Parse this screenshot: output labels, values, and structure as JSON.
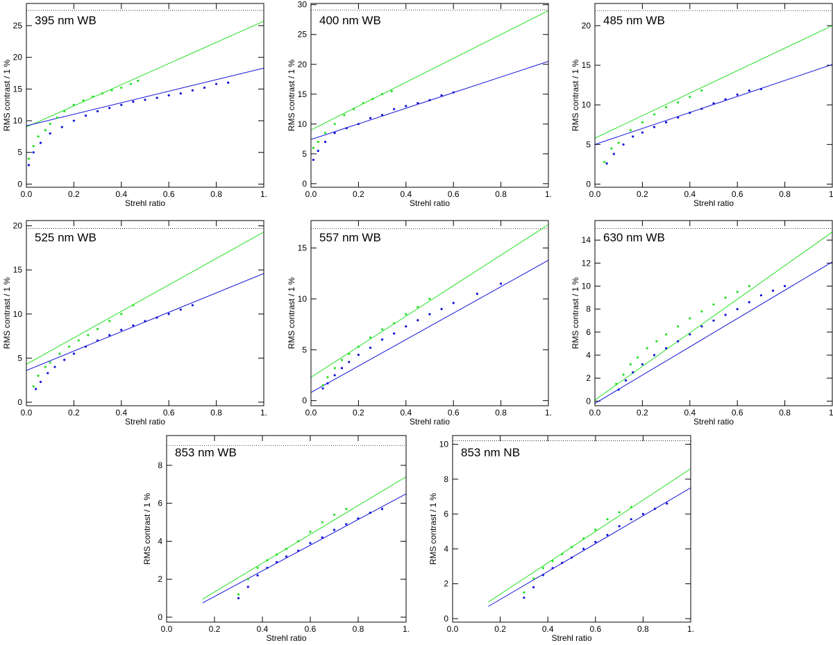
{
  "chart_data": [
    {
      "type": "scatter",
      "title": "395 nm WB",
      "xlabel": "Strehl ratio",
      "ylabel": "RMS contrast / 1 %",
      "xlim": [
        0,
        1
      ],
      "xticks": [
        {
          "value": 0,
          "label": "0.0"
        },
        0.2,
        0.4,
        0.6,
        0.8,
        {
          "value": 1,
          "label": "1."
        }
      ],
      "ylim": [
        -0.5,
        28.5
      ],
      "yticks": [
        0,
        5,
        10,
        15,
        20,
        25
      ],
      "reference_line": 27.4,
      "series": [
        {
          "color": "#22e022",
          "x": [
            0.01,
            0.03,
            0.05,
            0.08,
            0.1,
            0.13,
            0.16,
            0.2,
            0.24,
            0.28,
            0.32,
            0.36,
            0.4,
            0.44,
            0.47
          ],
          "values": [
            4,
            6,
            7.5,
            8.5,
            9.5,
            10.5,
            11.5,
            12.5,
            13.2,
            13.8,
            14.3,
            14.8,
            15.2,
            15.8,
            16.3
          ]
        },
        {
          "color": "#1010d8",
          "x": [
            0.01,
            0.03,
            0.06,
            0.1,
            0.15,
            0.2,
            0.25,
            0.3,
            0.35,
            0.4,
            0.45,
            0.5,
            0.55,
            0.6,
            0.65,
            0.7,
            0.75,
            0.8,
            0.85
          ],
          "values": [
            3,
            5,
            6.5,
            8,
            9,
            10,
            10.8,
            11.5,
            12,
            12.5,
            13,
            13.3,
            13.6,
            14,
            14.3,
            14.8,
            15.2,
            15.8,
            16
          ]
        }
      ],
      "fits": [
        {
          "color": "#22e022",
          "x": [
            0,
            1
          ],
          "values": [
            9.0,
            25.7
          ]
        },
        {
          "color": "#1010d8",
          "x": [
            0,
            1
          ],
          "values": [
            9.2,
            18.3
          ]
        }
      ]
    },
    {
      "type": "scatter",
      "title": "400 nm WB",
      "xlabel": "Strehl ratio",
      "ylabel": "RMS contrast / 1 %",
      "xlim": [
        0,
        1
      ],
      "xticks": [
        {
          "value": 0,
          "label": "0.0"
        },
        0.2,
        0.4,
        0.6,
        0.8,
        {
          "value": 1,
          "label": "1."
        }
      ],
      "ylim": [
        -0.6,
        30.2
      ],
      "yticks": [
        0,
        5,
        10,
        15,
        20,
        25,
        30
      ],
      "reference_line": 29.1,
      "series": [
        {
          "color": "#22e022",
          "x": [
            0.01,
            0.03,
            0.06,
            0.1,
            0.14,
            0.18,
            0.22,
            0.26,
            0.3,
            0.34
          ],
          "values": [
            6,
            7,
            8.5,
            10,
            11.5,
            12.5,
            13.5,
            14.2,
            15,
            15.5
          ]
        },
        {
          "color": "#1010d8",
          "x": [
            0.01,
            0.03,
            0.06,
            0.1,
            0.15,
            0.2,
            0.25,
            0.3,
            0.35,
            0.4,
            0.45,
            0.5,
            0.55,
            0.6
          ],
          "values": [
            4,
            5.5,
            7,
            8.5,
            9.3,
            10,
            11,
            11.5,
            12.5,
            13,
            13.5,
            14,
            14.8,
            15.3
          ]
        }
      ],
      "fits": [
        {
          "color": "#22e022",
          "x": [
            0,
            1
          ],
          "values": [
            9,
            29
          ]
        },
        {
          "color": "#1010d8",
          "x": [
            0,
            1
          ],
          "values": [
            7.4,
            20.5
          ]
        }
      ]
    },
    {
      "type": "scatter",
      "title": "485 nm WB",
      "xlabel": "Strehl ratio",
      "ylabel": "RMS contrast / 1 %",
      "xlim": [
        0,
        1
      ],
      "xticks": [
        {
          "value": 0,
          "label": "0.0"
        },
        0.2,
        0.4,
        0.6,
        0.8,
        {
          "value": 1,
          "label": "1."
        }
      ],
      "ylim": [
        -0.4,
        22.8
      ],
      "yticks": [
        0,
        5,
        10,
        15,
        20
      ],
      "reference_line": 21.9,
      "series": [
        {
          "color": "#22e022",
          "x": [
            0.04,
            0.07,
            0.1,
            0.15,
            0.2,
            0.25,
            0.3,
            0.35,
            0.4,
            0.45
          ],
          "values": [
            2.8,
            4.5,
            5.2,
            6.8,
            7.8,
            8.8,
            9.7,
            10.3,
            11,
            11.8
          ]
        },
        {
          "color": "#1010d8",
          "x": [
            0.05,
            0.08,
            0.12,
            0.16,
            0.2,
            0.25,
            0.3,
            0.35,
            0.4,
            0.45,
            0.5,
            0.55,
            0.6,
            0.65,
            0.7
          ],
          "values": [
            2.6,
            3.8,
            5,
            6,
            6.5,
            7.2,
            7.8,
            8.4,
            9,
            9.5,
            10.2,
            10.7,
            11.3,
            11.8,
            12
          ]
        }
      ],
      "fits": [
        {
          "color": "#22e022",
          "x": [
            0,
            1
          ],
          "values": [
            5.8,
            20
          ]
        },
        {
          "color": "#1010d8",
          "x": [
            0,
            1
          ],
          "values": [
            5,
            15.1
          ]
        }
      ]
    },
    {
      "type": "scatter",
      "title": "525 nm WB",
      "xlabel": "Strehl ratio",
      "ylabel": "RMS contrast / 1 %",
      "xlim": [
        0,
        1
      ],
      "xticks": [
        {
          "value": 0,
          "label": "0.0"
        },
        0.2,
        0.4,
        0.6,
        0.8,
        {
          "value": 1,
          "label": "1."
        }
      ],
      "ylim": [
        -0.4,
        20.6
      ],
      "yticks": [
        0,
        5,
        10,
        15,
        20
      ],
      "reference_line": 19.7,
      "series": [
        {
          "color": "#22e022",
          "x": [
            0.03,
            0.05,
            0.08,
            0.1,
            0.14,
            0.18,
            0.22,
            0.26,
            0.3,
            0.35,
            0.4,
            0.45
          ],
          "values": [
            1.8,
            3,
            4,
            4.5,
            5.5,
            6.3,
            7,
            7.6,
            8.3,
            9.2,
            10,
            11
          ]
        },
        {
          "color": "#1010d8",
          "x": [
            0.04,
            0.06,
            0.09,
            0.12,
            0.16,
            0.2,
            0.25,
            0.3,
            0.35,
            0.4,
            0.45,
            0.5,
            0.55,
            0.6,
            0.65,
            0.7
          ],
          "values": [
            1.5,
            2.3,
            3.3,
            4,
            4.8,
            5.5,
            6.3,
            7,
            7.6,
            8.2,
            8.7,
            9.2,
            9.6,
            10,
            10.5,
            11
          ]
        }
      ],
      "fits": [
        {
          "color": "#22e022",
          "x": [
            0,
            1
          ],
          "values": [
            4.3,
            19.3
          ]
        },
        {
          "color": "#1010d8",
          "x": [
            0,
            1
          ],
          "values": [
            3.6,
            14.6
          ]
        }
      ]
    },
    {
      "type": "scatter",
      "title": "557 nm WB",
      "xlabel": "Strehl ratio",
      "ylabel": "RMS contrast / 1 %",
      "xlim": [
        0,
        1
      ],
      "xticks": [
        {
          "value": 0,
          "label": "0.0"
        },
        0.2,
        0.4,
        0.6,
        0.8,
        {
          "value": 1,
          "label": "1."
        }
      ],
      "ylim": [
        -0.5,
        17.7
      ],
      "yticks": [
        0,
        5,
        10,
        15
      ],
      "reference_line": 16.9,
      "series": [
        {
          "color": "#22e022",
          "x": [
            0.05,
            0.07,
            0.1,
            0.13,
            0.16,
            0.2,
            0.25,
            0.3,
            0.35,
            0.4,
            0.45,
            0.5
          ],
          "values": [
            1.5,
            2.3,
            3.2,
            4,
            4.6,
            5.3,
            6.2,
            7,
            7.6,
            8.5,
            9.2,
            10
          ]
        },
        {
          "color": "#1010d8",
          "x": [
            0.05,
            0.07,
            0.1,
            0.13,
            0.16,
            0.2,
            0.25,
            0.3,
            0.35,
            0.4,
            0.45,
            0.5,
            0.55,
            0.6,
            0.7,
            0.8
          ],
          "values": [
            1.2,
            1.7,
            2.5,
            3.2,
            3.8,
            4.5,
            5.2,
            6,
            6.6,
            7.3,
            7.9,
            8.5,
            9,
            9.6,
            10.5,
            11.5
          ]
        }
      ],
      "fits": [
        {
          "color": "#22e022",
          "x": [
            0,
            1
          ],
          "values": [
            2.3,
            17.3
          ]
        },
        {
          "color": "#1010d8",
          "x": [
            0,
            1
          ],
          "values": [
            0.8,
            13.8
          ]
        }
      ]
    },
    {
      "type": "scatter",
      "title": "630 nm WB",
      "xlabel": "Strehl ratio",
      "ylabel": "RMS contrast / 1 %",
      "xlim": [
        0,
        1
      ],
      "xticks": [
        {
          "value": 0,
          "label": "0.0"
        },
        0.2,
        0.4,
        0.6,
        0.8,
        {
          "value": 1,
          "label": "1."
        }
      ],
      "ylim": [
        -0.4,
        15.7
      ],
      "yticks": [
        0,
        2,
        4,
        6,
        8,
        10,
        12,
        14
      ],
      "reference_line": 15.0,
      "series": [
        {
          "color": "#22e022",
          "x": [
            0.09,
            0.12,
            0.15,
            0.18,
            0.22,
            0.26,
            0.3,
            0.35,
            0.4,
            0.45,
            0.5,
            0.55,
            0.6,
            0.65
          ],
          "values": [
            1.5,
            2.3,
            3.2,
            3.8,
            4.6,
            5.2,
            5.8,
            6.5,
            7.2,
            7.8,
            8.4,
            9,
            9.5,
            10
          ]
        },
        {
          "color": "#1010d8",
          "x": [
            0.1,
            0.13,
            0.16,
            0.2,
            0.25,
            0.3,
            0.35,
            0.4,
            0.45,
            0.5,
            0.55,
            0.6,
            0.65,
            0.7,
            0.75,
            0.8
          ],
          "values": [
            1,
            1.8,
            2.5,
            3.2,
            4,
            4.6,
            5.2,
            5.8,
            6.5,
            7,
            7.5,
            8,
            8.6,
            9.2,
            9.6,
            10
          ]
        }
      ],
      "fits": [
        {
          "color": "#22e022",
          "x": [
            0,
            1
          ],
          "values": [
            0.1,
            14.7
          ]
        },
        {
          "color": "#1010d8",
          "x": [
            0,
            1
          ],
          "values": [
            -0.2,
            12.1
          ]
        }
      ]
    },
    {
      "type": "scatter",
      "title": "853 nm WB",
      "xlabel": "Strehl ratio",
      "ylabel": "RMS contrast / 1 %",
      "xlim": [
        0,
        1
      ],
      "xticks": [
        {
          "value": 0,
          "label": "0.0"
        },
        0.2,
        0.4,
        0.6,
        0.8,
        {
          "value": 1,
          "label": "1."
        }
      ],
      "ylim": [
        -0.26,
        9.57
      ],
      "yticks": [
        0,
        2,
        4,
        6,
        8
      ],
      "reference_line": 9.05,
      "series": [
        {
          "color": "#22e022",
          "x": [
            0.3,
            0.34,
            0.38,
            0.42,
            0.46,
            0.5,
            0.55,
            0.6,
            0.65,
            0.7,
            0.75
          ],
          "values": [
            1.2,
            2,
            2.6,
            3,
            3.3,
            3.6,
            4,
            4.5,
            5,
            5.4,
            5.7
          ]
        },
        {
          "color": "#1010d8",
          "x": [
            0.3,
            0.34,
            0.38,
            0.42,
            0.46,
            0.5,
            0.55,
            0.6,
            0.65,
            0.7,
            0.75,
            0.8,
            0.85,
            0.9
          ],
          "values": [
            1,
            1.6,
            2.2,
            2.6,
            2.9,
            3.2,
            3.5,
            3.9,
            4.2,
            4.6,
            4.9,
            5.2,
            5.5,
            5.7
          ]
        }
      ],
      "fits": [
        {
          "color": "#22e022",
          "x": [
            0.15,
            1
          ],
          "values": [
            0.95,
            7.4
          ]
        },
        {
          "color": "#1010d8",
          "x": [
            0.15,
            1
          ],
          "values": [
            0.75,
            6.5
          ]
        }
      ]
    },
    {
      "type": "scatter",
      "title": "853 nm NB",
      "xlabel": "Strehl ratio",
      "ylabel": "RMS contrast / 1 %",
      "xlim": [
        0,
        1
      ],
      "xticks": [
        {
          "value": 0,
          "label": "0.0"
        },
        0.2,
        0.4,
        0.6,
        0.8,
        {
          "value": 1,
          "label": "1."
        }
      ],
      "ylim": [
        -0.2,
        10.5
      ],
      "yticks": [
        0,
        2,
        4,
        6,
        8,
        10
      ],
      "reference_line": 10.2,
      "series": [
        {
          "color": "#22e022",
          "x": [
            0.3,
            0.34,
            0.38,
            0.42,
            0.46,
            0.5,
            0.55,
            0.6,
            0.65,
            0.7,
            0.75
          ],
          "values": [
            1.5,
            2.3,
            2.9,
            3.3,
            3.7,
            4.1,
            4.6,
            5.1,
            5.7,
            6.1,
            6.4
          ]
        },
        {
          "color": "#1010d8",
          "x": [
            0.3,
            0.34,
            0.38,
            0.42,
            0.46,
            0.5,
            0.55,
            0.6,
            0.65,
            0.7,
            0.75,
            0.8,
            0.85,
            0.9
          ],
          "values": [
            1.2,
            1.8,
            2.5,
            2.9,
            3.2,
            3.5,
            4,
            4.4,
            4.8,
            5.3,
            5.7,
            6,
            6.3,
            6.6
          ]
        }
      ],
      "fits": [
        {
          "color": "#22e022",
          "x": [
            0.15,
            1
          ],
          "values": [
            0.95,
            8.6
          ]
        },
        {
          "color": "#1010d8",
          "x": [
            0.15,
            1
          ],
          "values": [
            0.7,
            7.5
          ]
        }
      ]
    }
  ]
}
